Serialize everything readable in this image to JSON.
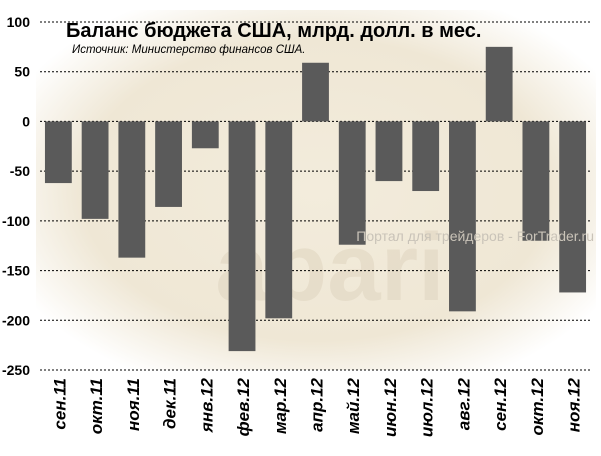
{
  "chart_data": {
    "type": "bar",
    "title": "Баланс бюджета США, млрд. долл. в мес.",
    "subtitle": "Источник: Министерство финансов США.",
    "watermark": "Портал для трейдеров - ForTrader.ru",
    "categories": [
      "сен.11",
      "окт.11",
      "ноя.11",
      "дек.11",
      "янв.12",
      "фев.12",
      "мар.12",
      "апр.12",
      "май.12",
      "июн.12",
      "июл.12",
      "авг.12",
      "сен.12",
      "окт.12",
      "ноя.12"
    ],
    "values": [
      -62,
      -98,
      -137,
      -86,
      -27,
      -231,
      -198,
      59,
      -124,
      -60,
      -70,
      -191,
      75,
      -120,
      -172
    ],
    "ylim": [
      -250,
      100
    ],
    "yticks": [
      100,
      50,
      0,
      -50,
      -100,
      -150,
      -200,
      -250
    ],
    "grid": true,
    "colors": {
      "bar": "#5a5a5a",
      "grid": "#000000",
      "backdrop": "#f1ebde"
    }
  }
}
